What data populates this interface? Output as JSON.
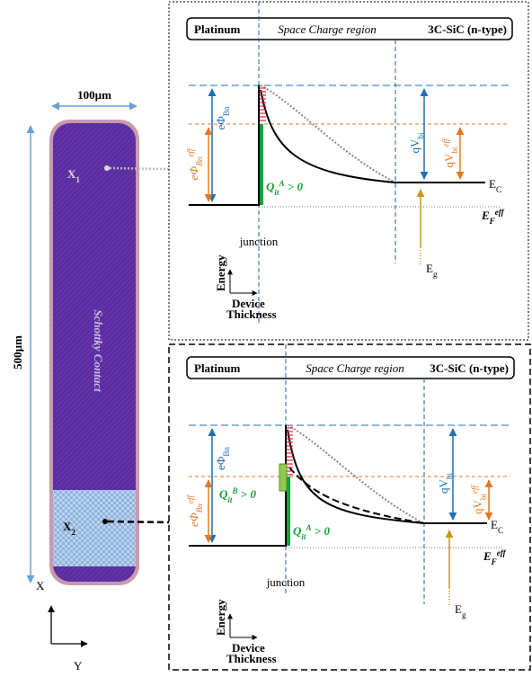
{
  "device": {
    "width_label": "100µm",
    "length_label": "500µm",
    "contact_label": "Schottky Contact",
    "points": [
      {
        "base": "X",
        "sub": "1"
      },
      {
        "base": "X",
        "sub": "2"
      }
    ]
  },
  "axes": {
    "x": "X",
    "y": "Y"
  },
  "panels": [
    {
      "header": [
        "Platinum",
        "Space Charge region",
        "3C-SiC (n-type)"
      ],
      "barrier": {
        "base": "eΦ",
        "sub": "Bn"
      },
      "barrier_eff": {
        "base": "eΦ",
        "sub": "Bn",
        "sup": "eff"
      },
      "vbi": {
        "base": "qV",
        "sub": "bi"
      },
      "vbi_eff": {
        "base": "qV",
        "sub": "bi",
        "sup": "eff"
      },
      "ec": {
        "base": "E",
        "sub": "C"
      },
      "ef": {
        "base": "E",
        "sub": "F",
        "sup": "eff"
      },
      "charges": [
        {
          "base": "Q",
          "sub": "it",
          "sup": "A",
          "rest": " > 0"
        }
      ],
      "junction": "junction",
      "eg": {
        "base": "E",
        "sub": "g"
      },
      "energy_axis": "Energy",
      "thickness_axis": [
        "Device",
        "Thickness"
      ]
    },
    {
      "header": [
        "Platinum",
        "Space Charge region",
        "3C-SiC (n-type)"
      ],
      "barrier": {
        "base": "eΦ",
        "sub": "Bn"
      },
      "barrier_eff": {
        "base": "eΦ",
        "sub": "Bn",
        "sup": "eff"
      },
      "vbi": {
        "base": "qV",
        "sub": "bi"
      },
      "vbi_eff": {
        "base": "qV",
        "sub": "bi",
        "sup": "eff"
      },
      "ec": {
        "base": "E",
        "sub": "C"
      },
      "ef": {
        "base": "E",
        "sub": "F",
        "sup": "eff"
      },
      "charges": [
        {
          "base": "Q",
          "sub": "it",
          "sup": "B",
          "rest": " > 0"
        },
        {
          "base": "Q",
          "sub": "it",
          "sup": "A",
          "rest": " > 0"
        }
      ],
      "junction": "junction",
      "eg": {
        "base": "E",
        "sub": "g"
      },
      "energy_axis": "Energy",
      "thickness_axis": [
        "Device",
        "Thickness"
      ]
    }
  ]
}
